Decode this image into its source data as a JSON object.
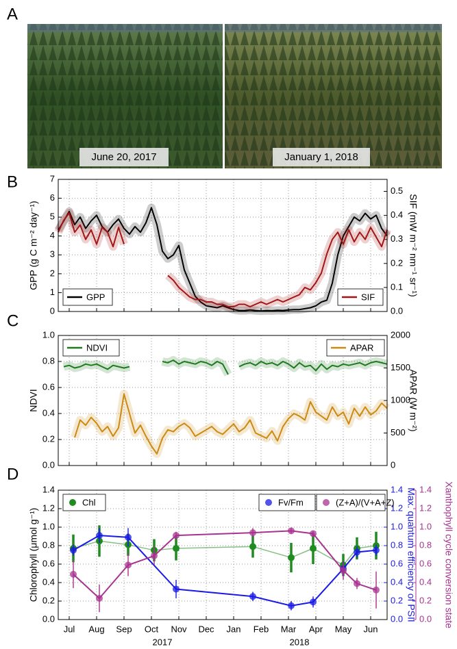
{
  "photos": {
    "panel_label": "A",
    "captions": [
      "June 20, 2017",
      "January 1, 2018"
    ]
  },
  "chart_data": [
    {
      "type": "line",
      "panel_label": "B",
      "y_label": "GPP (g C m⁻² day⁻¹)",
      "y2_label": "SIF (mW m⁻² nm⁻¹ sr⁻¹)",
      "ylim": [
        0,
        7
      ],
      "yticks": [
        0,
        1,
        2,
        3,
        4,
        5,
        6,
        7
      ],
      "y2lim": [
        0,
        0.55
      ],
      "y2ticks": [
        {
          "value": 0,
          "label": "0.0"
        },
        0.1,
        0.2,
        0.3,
        0.4,
        0.5
      ],
      "grid": true,
      "x": [
        -0.4,
        -0.2,
        0,
        0.2,
        0.4,
        0.6,
        0.8,
        1,
        1.2,
        1.4,
        1.6,
        1.8,
        2,
        2.2,
        2.4,
        2.6,
        2.8,
        3,
        3.2,
        3.4,
        3.6,
        3.8,
        4,
        4.2,
        4.4,
        4.6,
        4.8,
        5,
        5.2,
        5.4,
        5.6,
        5.8,
        6,
        6.2,
        6.4,
        6.6,
        6.8,
        7,
        7.2,
        7.4,
        7.6,
        7.8,
        8,
        8.2,
        8.4,
        8.6,
        8.8,
        9,
        9.2,
        9.4,
        9.6,
        9.8,
        10,
        10.2,
        10.4,
        10.6,
        10.8,
        11,
        11.2,
        11.4,
        11.6
      ],
      "series": [
        {
          "name": "GPP",
          "color": "#000000",
          "axis": "y",
          "values": [
            4.3,
            4.8,
            5.3,
            4.6,
            5.0,
            4.4,
            4.8,
            5.1,
            4.5,
            4.2,
            4.6,
            4.9,
            4.4,
            4.1,
            4.5,
            4.2,
            4.7,
            5.5,
            4.6,
            3.2,
            2.8,
            3.0,
            3.5,
            2.2,
            1.5,
            0.8,
            0.5,
            0.3,
            0.25,
            0.2,
            0.3,
            0.2,
            0.1,
            0.05,
            0.05,
            0.08,
            0.05,
            0.03,
            0.05,
            0.04,
            0.06,
            0.05,
            0.08,
            0.1,
            0.1,
            0.15,
            0.2,
            0.3,
            0.5,
            0.6,
            1.5,
            3.0,
            4.0,
            4.5,
            5.0,
            4.8,
            5.2,
            4.9,
            5.1,
            4.4,
            4.0
          ]
        },
        {
          "name": "SIF",
          "color": "#a31515",
          "axis": "y2",
          "values": [
            0.33,
            0.38,
            0.41,
            0.33,
            0.36,
            0.3,
            0.34,
            0.28,
            0.35,
            0.33,
            0.27,
            0.35,
            0.28,
            null,
            null,
            null,
            null,
            null,
            null,
            null,
            0.15,
            0.13,
            0.1,
            0.08,
            0.06,
            0.05,
            0.05,
            0.04,
            0.04,
            0.03,
            0.03,
            0.02,
            0.02,
            0.03,
            0.03,
            0.02,
            0.03,
            0.04,
            0.03,
            0.04,
            0.05,
            0.04,
            0.05,
            0.06,
            0.07,
            0.1,
            0.09,
            0.12,
            0.16,
            0.24,
            0.3,
            0.33,
            0.28,
            0.34,
            0.29,
            0.33,
            0.3,
            0.35,
            0.31,
            0.27,
            0.34
          ]
        }
      ]
    },
    {
      "type": "line",
      "panel_label": "C",
      "y_label": "NDVI",
      "y2_label": "APAR (W m⁻²)",
      "ylim": [
        0,
        1
      ],
      "yticks": [
        {
          "value": 0,
          "label": "0.0"
        },
        0.2,
        0.4,
        0.6,
        0.8,
        {
          "value": 1,
          "label": "1.0"
        }
      ],
      "y2lim": [
        0,
        2000
      ],
      "y2ticks": [
        0,
        500,
        1000,
        1500,
        2000
      ],
      "grid": true,
      "x": [
        -0.4,
        -0.2,
        0,
        0.2,
        0.4,
        0.6,
        0.8,
        1,
        1.2,
        1.4,
        1.6,
        1.8,
        2,
        2.2,
        2.4,
        2.6,
        2.8,
        3,
        3.2,
        3.4,
        3.6,
        3.8,
        4,
        4.2,
        4.4,
        4.6,
        4.8,
        5,
        5.2,
        5.4,
        5.6,
        5.8,
        6,
        6.2,
        6.4,
        6.6,
        6.8,
        7,
        7.2,
        7.4,
        7.6,
        7.8,
        8,
        8.2,
        8.4,
        8.6,
        8.8,
        9,
        9.2,
        9.4,
        9.6,
        9.8,
        10,
        10.2,
        10.4,
        10.6,
        10.8,
        11,
        11.2,
        11.4,
        11.6
      ],
      "series": [
        {
          "name": "NDVI",
          "color": "#1f7a1f",
          "axis": "y",
          "values": [
            null,
            0.76,
            0.77,
            0.75,
            0.76,
            0.78,
            0.77,
            0.78,
            0.76,
            0.74,
            0.77,
            0.76,
            0.75,
            0.76,
            null,
            null,
            null,
            null,
            null,
            0.8,
            0.79,
            0.81,
            0.78,
            0.8,
            0.79,
            0.78,
            0.8,
            0.79,
            0.77,
            0.8,
            0.78,
            0.7,
            null,
            0.76,
            0.78,
            0.79,
            0.77,
            0.8,
            0.78,
            0.79,
            0.77,
            0.8,
            0.78,
            0.75,
            0.79,
            0.76,
            0.77,
            0.73,
            0.78,
            0.74,
            0.77,
            0.76,
            0.78,
            0.77,
            0.78,
            0.79,
            0.77,
            0.79,
            0.8,
            0.79,
            0.78
          ]
        },
        {
          "name": "APAR",
          "color": "#cc8a12",
          "axis": "y2",
          "values": [
            null,
            null,
            null,
            430,
            700,
            620,
            740,
            650,
            520,
            600,
            450,
            580,
            1100,
            800,
            500,
            620,
            450,
            300,
            180,
            420,
            550,
            520,
            600,
            650,
            580,
            450,
            500,
            550,
            600,
            520,
            480,
            560,
            640,
            520,
            580,
            700,
            500,
            460,
            420,
            530,
            380,
            600,
            720,
            800,
            760,
            700,
            980,
            820,
            760,
            700,
            900,
            760,
            820,
            640,
            880,
            760,
            900,
            780,
            840,
            960,
            880
          ]
        }
      ]
    },
    {
      "type": "scatter",
      "panel_label": "D",
      "y_label": "Chlorophyll (μmol g⁻¹)",
      "y2_label": "Max. quantum efficiency of PSII",
      "y3_label": "Xanthophyll cycle conversion state",
      "xlim": [
        -0.4,
        11.6
      ],
      "xticks": [
        {
          "value": 0,
          "label": "Jul"
        },
        {
          "value": 1,
          "label": "Aug"
        },
        {
          "value": 2,
          "label": "Sep"
        },
        {
          "value": 3,
          "label": "Oct"
        },
        {
          "value": 4,
          "label": "Nov"
        },
        {
          "value": 5,
          "label": "Dec"
        },
        {
          "value": 6,
          "label": "Jan"
        },
        {
          "value": 7,
          "label": "Feb"
        },
        {
          "value": 8,
          "label": "Mar"
        },
        {
          "value": 9,
          "label": "Apr"
        },
        {
          "value": 10,
          "label": "May"
        },
        {
          "value": 11,
          "label": "Jun"
        }
      ],
      "years": [
        "2017",
        "2018"
      ],
      "ylim": [
        0,
        1.4
      ],
      "yticks": [
        {
          "value": 0,
          "label": "0.0"
        },
        0.2,
        0.4,
        0.6,
        0.8,
        {
          "value": 1,
          "label": "1.0"
        },
        1.2,
        1.4
      ],
      "y2lim": [
        0,
        1.4
      ],
      "y2ticks": [
        {
          "value": 0,
          "label": "0.0"
        },
        0.2,
        0.4,
        0.6,
        0.8,
        {
          "value": 1,
          "label": "1.0"
        },
        1.2,
        1.4
      ],
      "y3lim": [
        0,
        1.4
      ],
      "y3ticks": [
        {
          "value": 0,
          "label": "0.0"
        },
        0.2,
        0.4,
        0.6,
        0.8,
        {
          "value": 1,
          "label": "1.0"
        },
        1.2,
        1.4
      ],
      "grid": true,
      "series": [
        {
          "name": "Chl",
          "color": "#1f8c1f",
          "axis": "y",
          "x": [
            0.15,
            1.1,
            2.15,
            3.1,
            3.9,
            6.7,
            8.1,
            8.9,
            10.0,
            10.5,
            11.2
          ],
          "values": [
            0.77,
            0.85,
            0.81,
            0.75,
            0.77,
            0.79,
            0.67,
            0.77,
            0.59,
            0.77,
            0.8
          ],
          "errors": [
            0.15,
            0.17,
            0.12,
            0.12,
            0.13,
            0.12,
            0.16,
            0.17,
            0.12,
            0.12,
            0.15
          ]
        },
        {
          "name": "Fv/Fm",
          "color": "#1a1ae6",
          "axis": "y2",
          "x": [
            0.15,
            1.1,
            2.15,
            3.9,
            6.7,
            8.1,
            8.9,
            10.0,
            10.5,
            11.2
          ],
          "values": [
            0.75,
            0.91,
            0.89,
            0.33,
            0.25,
            0.15,
            0.19,
            0.55,
            0.73,
            0.75
          ],
          "errors": [
            0.06,
            0.08,
            0.1,
            0.1,
            0.05,
            0.05,
            0.06,
            0.08,
            0.06,
            0.06
          ]
        },
        {
          "name": "(Z+A)/(V+A+Z)",
          "color": "#a8328f",
          "axis": "y3",
          "x": [
            0.15,
            1.1,
            2.15,
            3.1,
            3.9,
            6.7,
            8.1,
            8.9,
            10.0,
            10.5,
            11.2
          ],
          "values": [
            0.49,
            0.23,
            0.59,
            0.69,
            0.91,
            0.94,
            0.96,
            0.93,
            0.53,
            0.39,
            0.32
          ],
          "errors": [
            0.15,
            0.15,
            0.12,
            0.1,
            0.04,
            0.05,
            0.03,
            0.03,
            0.1,
            0.06,
            0.2
          ]
        }
      ]
    }
  ]
}
